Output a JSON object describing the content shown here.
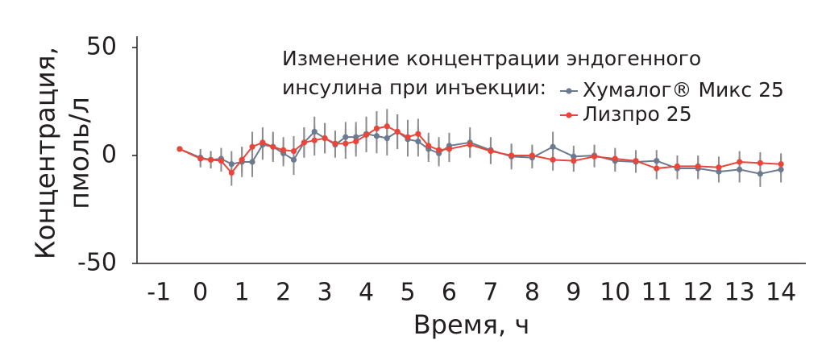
{
  "chart_data": {
    "type": "line",
    "ylabel": [
      "Концентрация,",
      "пмоль/л"
    ],
    "xlabel": "Время, ч",
    "legend_title": [
      "Изменение концентрации эндогенного",
      "инсулина при инъекции:"
    ],
    "x": [
      -0.5,
      0,
      0.25,
      0.5,
      0.75,
      1,
      1.25,
      1.5,
      1.75,
      2,
      2.25,
      2.5,
      2.75,
      3,
      3.25,
      3.5,
      3.75,
      4,
      4.25,
      4.5,
      4.75,
      5,
      5.25,
      5.5,
      5.75,
      6,
      6.5,
      7,
      7.5,
      8,
      8.5,
      9,
      9.5,
      10,
      10.5,
      11,
      11.5,
      12,
      12.5,
      13,
      13.5,
      14
    ],
    "series": [
      {
        "name": "Хумалог® Микс 25",
        "color": "#6b7a8f",
        "values": [
          3,
          -1,
          -2,
          -1.5,
          -4,
          -3,
          -3,
          5,
          4,
          1,
          -2,
          6,
          11,
          8,
          5,
          8.5,
          8.5,
          10,
          9,
          8,
          11,
          7.5,
          6.5,
          3,
          1,
          4.5,
          6,
          2.5,
          -0.5,
          -1,
          4,
          -0.5,
          0,
          -2.5,
          -3,
          -2.5,
          -6,
          -6,
          -7.5,
          -6.5,
          -8.5,
          -6.5
        ],
        "errors": [
          1,
          4,
          4,
          5,
          6,
          7,
          7,
          7,
          7,
          6,
          7,
          7,
          7,
          7,
          6,
          7,
          7,
          8,
          8,
          8,
          8,
          8,
          7,
          6,
          6,
          6,
          7,
          6,
          6,
          5,
          7,
          5,
          5,
          5,
          5,
          5,
          5,
          5,
          5,
          6,
          6,
          6
        ]
      },
      {
        "name": "Лизпро 25",
        "color": "#e8463a",
        "values": [
          3,
          -1.5,
          -2,
          -2.5,
          -8,
          -2,
          4,
          6,
          4,
          2.5,
          2,
          6,
          7,
          8,
          5.5,
          5.5,
          6.5,
          9.5,
          12.5,
          13.5,
          11,
          8.5,
          10,
          4.5,
          2.5,
          3,
          5,
          2,
          0,
          0,
          -2,
          -2.5,
          -0.5,
          -1.5,
          -2.5,
          -6,
          -5,
          -5,
          -5.5,
          -3,
          -3.5,
          -4
        ],
        "errors": [
          1,
          4,
          4,
          5,
          6,
          6,
          7,
          7,
          6,
          6,
          7,
          7,
          7,
          7,
          6,
          7,
          7,
          8,
          8,
          8,
          8,
          8,
          7,
          6,
          6,
          6,
          6,
          6,
          5,
          5,
          5,
          5,
          5,
          5,
          5,
          5,
          5,
          5,
          5,
          5,
          5,
          5
        ]
      }
    ],
    "xlim": [
      -1.53,
      14.6
    ],
    "xticks": [
      -1,
      0,
      1,
      2,
      3,
      4,
      5,
      6,
      7,
      8,
      9,
      10,
      11,
      12,
      13,
      14
    ],
    "ylim": [
      -50,
      55.2
    ],
    "yticks": [
      -50,
      0,
      50
    ]
  }
}
